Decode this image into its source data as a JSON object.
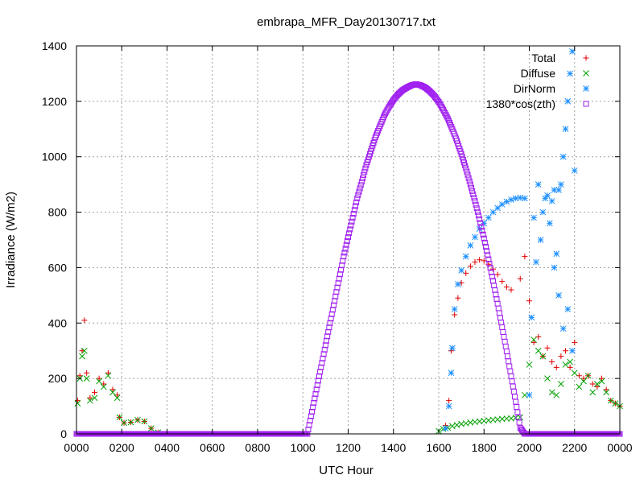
{
  "chart_data": {
    "type": "scatter",
    "title": "embrapa_MFR_Day20130717.txt",
    "xlabel": "UTC Hour",
    "ylabel": "Irradiance (W/m2)",
    "xlim": [
      0,
      24
    ],
    "ylim": [
      0,
      1400
    ],
    "x_tick_labels": [
      "0000",
      "0200",
      "0400",
      "0600",
      "0800",
      "1000",
      "1200",
      "1400",
      "1600",
      "1800",
      "2000",
      "2200",
      "0000"
    ],
    "x_tick_values": [
      0,
      2,
      4,
      6,
      8,
      10,
      12,
      14,
      16,
      18,
      20,
      22,
      24
    ],
    "y_tick_values": [
      0,
      200,
      400,
      600,
      800,
      1000,
      1200,
      1400
    ],
    "grid": true,
    "legend_position": "top-right",
    "series": [
      {
        "name": "Total",
        "marker": "plus",
        "color": "#e00000",
        "points": [
          [
            0.05,
            120
          ],
          [
            0.15,
            210
          ],
          [
            0.25,
            300
          ],
          [
            0.35,
            410
          ],
          [
            0.45,
            220
          ],
          [
            0.6,
            130
          ],
          [
            0.8,
            150
          ],
          [
            1.0,
            200
          ],
          [
            1.2,
            180
          ],
          [
            1.4,
            220
          ],
          [
            1.6,
            160
          ],
          [
            1.8,
            140
          ],
          [
            1.9,
            60
          ],
          [
            2.1,
            40
          ],
          [
            2.4,
            42
          ],
          [
            2.7,
            50
          ],
          [
            3.0,
            45
          ],
          [
            3.3,
            20
          ],
          [
            3.6,
            5
          ],
          [
            16.3,
            30
          ],
          [
            16.45,
            120
          ],
          [
            16.55,
            300
          ],
          [
            16.7,
            430
          ],
          [
            16.85,
            490
          ],
          [
            17.0,
            545
          ],
          [
            17.2,
            580
          ],
          [
            17.4,
            605
          ],
          [
            17.6,
            620
          ],
          [
            17.8,
            628
          ],
          [
            18.0,
            625
          ],
          [
            18.2,
            612
          ],
          [
            18.4,
            595
          ],
          [
            18.6,
            575
          ],
          [
            18.8,
            550
          ],
          [
            19.0,
            530
          ],
          [
            19.2,
            520
          ],
          [
            19.6,
            560
          ],
          [
            19.8,
            640
          ],
          [
            20.0,
            480
          ],
          [
            20.2,
            330
          ],
          [
            20.4,
            350
          ],
          [
            20.6,
            280
          ],
          [
            20.8,
            310
          ],
          [
            21.0,
            260
          ],
          [
            21.2,
            240
          ],
          [
            21.4,
            280
          ],
          [
            21.6,
            300
          ],
          [
            21.8,
            240
          ],
          [
            22.0,
            330
          ],
          [
            22.2,
            210
          ],
          [
            22.4,
            200
          ],
          [
            22.6,
            210
          ],
          [
            22.8,
            180
          ],
          [
            23.0,
            170
          ],
          [
            23.2,
            200
          ],
          [
            23.4,
            160
          ],
          [
            23.6,
            120
          ],
          [
            23.8,
            110
          ],
          [
            24.0,
            100
          ]
        ]
      },
      {
        "name": "Diffuse",
        "marker": "cross",
        "color": "#00a000",
        "points": [
          [
            0.05,
            110
          ],
          [
            0.15,
            200
          ],
          [
            0.25,
            280
          ],
          [
            0.35,
            300
          ],
          [
            0.45,
            200
          ],
          [
            0.6,
            120
          ],
          [
            0.8,
            130
          ],
          [
            1.0,
            190
          ],
          [
            1.2,
            170
          ],
          [
            1.4,
            210
          ],
          [
            1.6,
            150
          ],
          [
            1.8,
            130
          ],
          [
            1.9,
            60
          ],
          [
            2.1,
            40
          ],
          [
            2.4,
            42
          ],
          [
            2.7,
            50
          ],
          [
            3.0,
            45
          ],
          [
            3.3,
            20
          ],
          [
            3.6,
            5
          ],
          [
            16.0,
            10
          ],
          [
            16.2,
            18
          ],
          [
            16.4,
            22
          ],
          [
            16.6,
            28
          ],
          [
            16.8,
            32
          ],
          [
            17.0,
            36
          ],
          [
            17.2,
            38
          ],
          [
            17.4,
            41
          ],
          [
            17.6,
            43
          ],
          [
            17.8,
            45
          ],
          [
            18.0,
            47
          ],
          [
            18.2,
            49
          ],
          [
            18.4,
            51
          ],
          [
            18.6,
            52
          ],
          [
            18.8,
            54
          ],
          [
            19.0,
            55
          ],
          [
            19.2,
            56
          ],
          [
            19.4,
            58
          ],
          [
            19.6,
            60
          ],
          [
            19.8,
            140
          ],
          [
            20.0,
            250
          ],
          [
            20.2,
            340
          ],
          [
            20.4,
            300
          ],
          [
            20.6,
            280
          ],
          [
            20.8,
            200
          ],
          [
            21.0,
            150
          ],
          [
            21.2,
            140
          ],
          [
            21.4,
            180
          ],
          [
            21.6,
            250
          ],
          [
            21.8,
            260
          ],
          [
            22.0,
            220
          ],
          [
            22.2,
            170
          ],
          [
            22.4,
            190
          ],
          [
            22.6,
            210
          ],
          [
            22.8,
            150
          ],
          [
            23.0,
            180
          ],
          [
            23.2,
            190
          ],
          [
            23.4,
            150
          ],
          [
            23.6,
            120
          ],
          [
            23.8,
            110
          ],
          [
            24.0,
            100
          ]
        ]
      },
      {
        "name": "DirNorm",
        "marker": "star",
        "color": "#1e90ff",
        "points": [
          [
            16.3,
            20
          ],
          [
            16.45,
            100
          ],
          [
            16.55,
            220
          ],
          [
            16.6,
            310
          ],
          [
            16.7,
            450
          ],
          [
            16.85,
            540
          ],
          [
            17.0,
            590
          ],
          [
            17.2,
            640
          ],
          [
            17.4,
            680
          ],
          [
            17.6,
            710
          ],
          [
            17.8,
            740
          ],
          [
            18.0,
            760
          ],
          [
            18.2,
            780
          ],
          [
            18.4,
            800
          ],
          [
            18.6,
            815
          ],
          [
            18.8,
            828
          ],
          [
            19.0,
            838
          ],
          [
            19.2,
            845
          ],
          [
            19.4,
            850
          ],
          [
            19.6,
            852
          ],
          [
            19.8,
            850
          ],
          [
            20.0,
            140
          ],
          [
            20.1,
            420
          ],
          [
            20.2,
            780
          ],
          [
            20.3,
            620
          ],
          [
            20.4,
            900
          ],
          [
            20.5,
            700
          ],
          [
            20.6,
            800
          ],
          [
            20.7,
            850
          ],
          [
            20.8,
            860
          ],
          [
            20.9,
            760
          ],
          [
            21.0,
            840
          ],
          [
            21.1,
            880
          ],
          [
            21.2,
            650
          ],
          [
            21.3,
            880
          ],
          [
            21.4,
            900
          ],
          [
            21.5,
            1000
          ],
          [
            21.6,
            1100
          ],
          [
            21.7,
            1200
          ],
          [
            21.8,
            1300
          ],
          [
            21.9,
            1380
          ],
          [
            22.0,
            950
          ],
          [
            21.1,
            600
          ],
          [
            21.3,
            500
          ],
          [
            21.5,
            380
          ],
          [
            21.7,
            450
          ],
          [
            21.9,
            300
          ]
        ]
      },
      {
        "name": "1380*cos(zth)",
        "marker": "square",
        "color": "#a020f0",
        "points": [
          [
            0,
            0
          ],
          [
            2,
            0
          ],
          [
            4,
            0
          ],
          [
            6,
            0
          ],
          [
            8,
            0
          ],
          [
            10,
            0
          ],
          [
            10.2,
            0
          ],
          [
            10.4,
            80
          ],
          [
            10.6,
            160
          ],
          [
            10.8,
            240
          ],
          [
            11.0,
            320
          ],
          [
            11.2,
            400
          ],
          [
            11.4,
            480
          ],
          [
            11.6,
            560
          ],
          [
            11.8,
            640
          ],
          [
            12.0,
            710
          ],
          [
            12.2,
            780
          ],
          [
            12.4,
            850
          ],
          [
            12.6,
            910
          ],
          [
            12.8,
            970
          ],
          [
            13.0,
            1020
          ],
          [
            13.2,
            1070
          ],
          [
            13.4,
            1110
          ],
          [
            13.6,
            1150
          ],
          [
            13.8,
            1180
          ],
          [
            14.0,
            1205
          ],
          [
            14.2,
            1225
          ],
          [
            14.4,
            1240
          ],
          [
            14.6,
            1250
          ],
          [
            14.8,
            1258
          ],
          [
            15.0,
            1262
          ],
          [
            15.2,
            1258
          ],
          [
            15.4,
            1250
          ],
          [
            15.6,
            1237
          ],
          [
            15.8,
            1220
          ],
          [
            16.0,
            1198
          ],
          [
            16.2,
            1170
          ],
          [
            16.4,
            1138
          ],
          [
            16.6,
            1100
          ],
          [
            16.8,
            1058
          ],
          [
            17.0,
            1010
          ],
          [
            17.2,
            958
          ],
          [
            17.4,
            900
          ],
          [
            17.6,
            840
          ],
          [
            17.8,
            775
          ],
          [
            18.0,
            705
          ],
          [
            18.2,
            630
          ],
          [
            18.4,
            552
          ],
          [
            18.6,
            470
          ],
          [
            18.8,
            385
          ],
          [
            19.0,
            298
          ],
          [
            19.2,
            208
          ],
          [
            19.4,
            116
          ],
          [
            19.6,
            22
          ],
          [
            19.8,
            0
          ],
          [
            20,
            0
          ],
          [
            22,
            0
          ],
          [
            24,
            0
          ]
        ]
      }
    ]
  }
}
